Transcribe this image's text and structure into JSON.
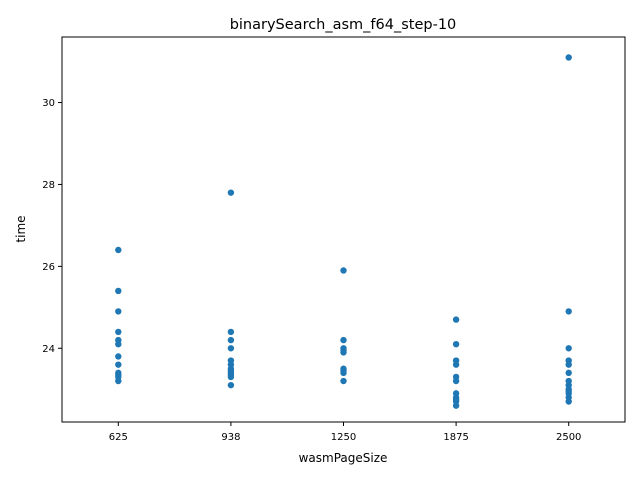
{
  "chart_data": {
    "type": "scatter",
    "title": "binarySearch_asm_f64_step-10",
    "xlabel": "wasmPageSize",
    "ylabel": "time",
    "categories": [
      "625",
      "938",
      "1250",
      "1875",
      "2500"
    ],
    "ylim": [
      22.2,
      31.6
    ],
    "yticks": [
      24,
      26,
      28,
      30
    ],
    "grid": false,
    "marker_color": "#1f77b4",
    "series": [
      {
        "values": [
          [
            26.4,
            25.4,
            24.9,
            24.4,
            24.2,
            24.1,
            23.8,
            23.6,
            23.4,
            23.35,
            23.3,
            23.2
          ],
          [
            27.8,
            24.4,
            24.2,
            24.0,
            23.7,
            23.6,
            23.5,
            23.45,
            23.4,
            23.35,
            23.3,
            23.1
          ],
          [
            25.9,
            24.2,
            24.0,
            23.95,
            23.9,
            23.5,
            23.45,
            23.4,
            23.2
          ],
          [
            24.7,
            24.1,
            23.7,
            23.6,
            23.3,
            23.2,
            22.9,
            22.8,
            22.75,
            22.7,
            22.6
          ],
          [
            31.1,
            24.9,
            24.0,
            23.7,
            23.6,
            23.4,
            23.2,
            23.1,
            23.0,
            22.95,
            22.9,
            22.8,
            22.7
          ]
        ]
      }
    ]
  }
}
